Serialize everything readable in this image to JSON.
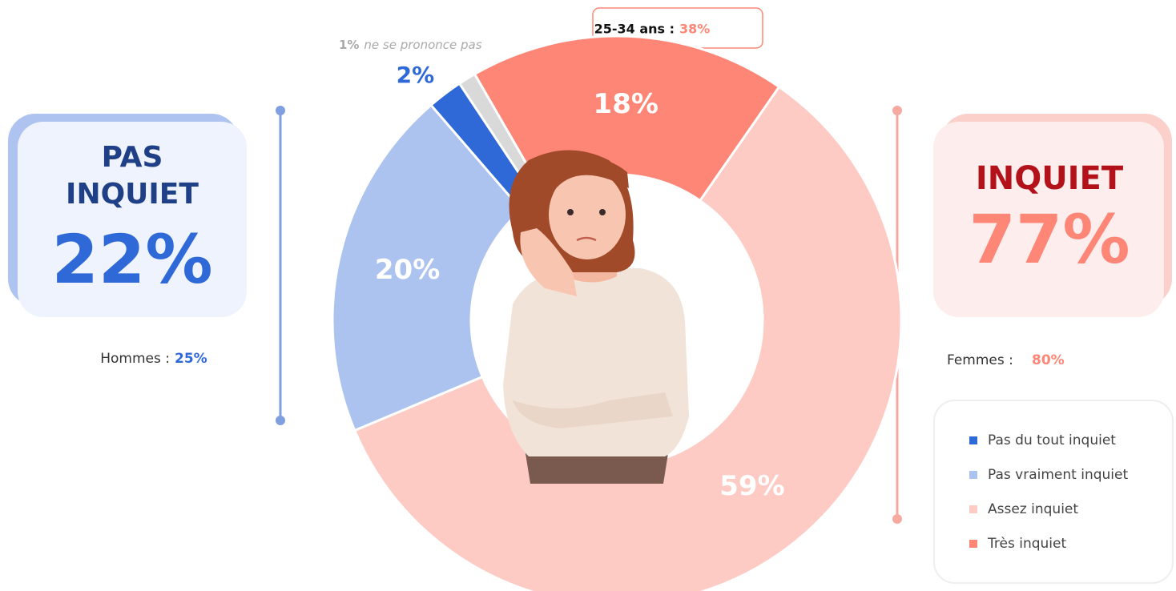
{
  "chart_data": {
    "type": "donut",
    "categories": [
      "Très inquiet",
      "Assez inquiet",
      "Pas vraiment inquiet",
      "Pas du tout inquiet",
      "ne se prononce pas"
    ],
    "values": [
      18,
      59,
      20,
      2,
      1
    ],
    "value_labels": [
      "18%",
      "59%",
      "20%",
      "2%",
      "1%"
    ],
    "colors": [
      "#fd8676",
      "#fdcac4",
      "#adc3ef",
      "#2f69d8",
      "#d9d9d9"
    ],
    "annotations": {
      "left_title": "PAS INQUIET",
      "left_value": "22%",
      "left_sub": "Hommes :",
      "left_sub_value": "25%",
      "right_title": "INQUIET",
      "right_value": "77%",
      "right_sub": "Femmes :",
      "right_sub_value": "80%",
      "top_label": "25-34 ans :",
      "top_value": "38%"
    }
  }
}
